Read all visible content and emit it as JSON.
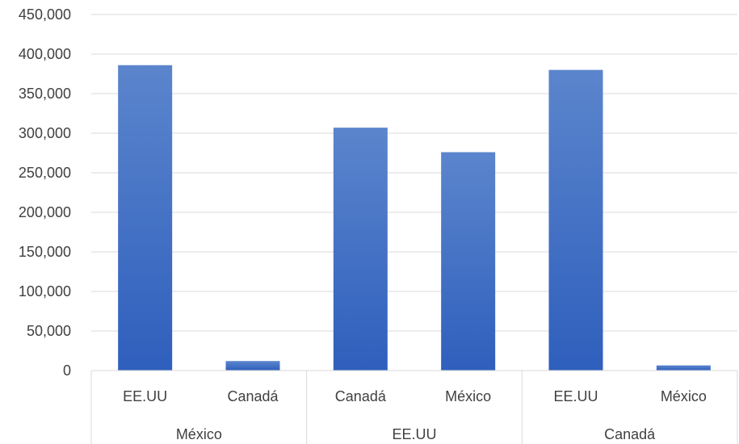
{
  "chart_data": {
    "type": "bar",
    "title": "",
    "xlabel": "",
    "ylabel": "",
    "ylim": [
      0,
      450000
    ],
    "y_ticks": [
      0,
      50000,
      100000,
      150000,
      200000,
      250000,
      300000,
      350000,
      400000,
      450000
    ],
    "y_tick_labels": [
      "0",
      "50,000",
      "100,000",
      "150,000",
      "200,000",
      "250,000",
      "300,000",
      "350,000",
      "400,000",
      "450,000"
    ],
    "grid": true,
    "legend": "none",
    "groups": [
      {
        "label": "México",
        "categories": [
          "EE.UU",
          "Canadá"
        ],
        "values": [
          386000,
          12000
        ]
      },
      {
        "label": "EE.UU",
        "categories": [
          "Canadá",
          "México"
        ],
        "values": [
          307000,
          276000
        ]
      },
      {
        "label": "Canadá",
        "categories": [
          "EE.UU",
          "México"
        ],
        "values": [
          380000,
          6500
        ]
      }
    ],
    "colors": {
      "bar_top": "#5b85cc",
      "bar_bottom": "#2f5fbd"
    }
  }
}
